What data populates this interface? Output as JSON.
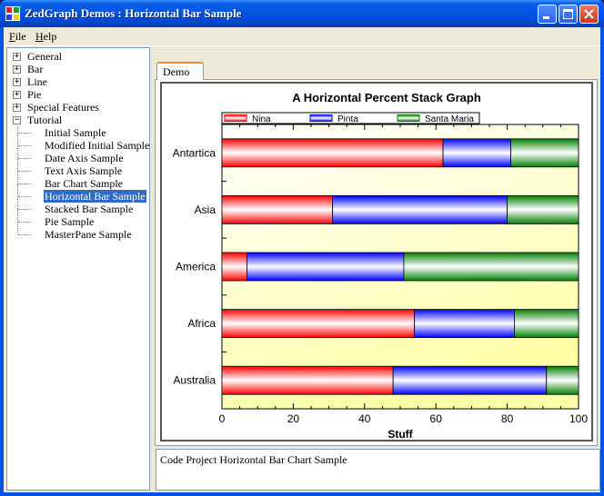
{
  "window": {
    "title": "ZedGraph Demos : Horizontal Bar Sample"
  },
  "menu": [
    {
      "key": "F",
      "rest": "ile"
    },
    {
      "key": "H",
      "rest": "elp"
    }
  ],
  "tree": {
    "nodes": [
      {
        "label": "General",
        "expander": "+"
      },
      {
        "label": "Bar",
        "expander": "+"
      },
      {
        "label": "Line",
        "expander": "+"
      },
      {
        "label": "Pie",
        "expander": "+"
      },
      {
        "label": "Special Features",
        "expander": "+"
      },
      {
        "label": "Tutorial",
        "expander": "−"
      }
    ],
    "children": [
      {
        "label": "Initial Sample"
      },
      {
        "label": "Modified Initial Sample"
      },
      {
        "label": "Date Axis Sample"
      },
      {
        "label": "Text Axis Sample"
      },
      {
        "label": "Bar Chart Sample"
      },
      {
        "label": "Horizontal Bar Sample",
        "selected": true
      },
      {
        "label": "Stacked Bar Sample"
      },
      {
        "label": "Pie Sample"
      },
      {
        "label": "MasterPane Sample"
      }
    ]
  },
  "tabs": [
    {
      "label": "Demo"
    }
  ],
  "description": "Code Project Horizontal Bar Chart Sample",
  "chart_data": {
    "type": "bar",
    "orientation": "horizontal",
    "stacking": "percent",
    "title": "A Horizontal Percent Stack Graph",
    "xlabel": "Stuff",
    "xlim": [
      0,
      100
    ],
    "xticks": [
      "0",
      "20",
      "40",
      "60",
      "80",
      "100"
    ],
    "categories": [
      "Antartica",
      "Asia",
      "America",
      "Africa",
      "Australia"
    ],
    "series": [
      {
        "name": "Nina",
        "color": "#ff0000",
        "values": [
          62,
          31,
          7,
          54,
          48
        ]
      },
      {
        "name": "Pinta",
        "color": "#0000ff",
        "values": [
          19,
          49,
          44,
          28,
          43
        ]
      },
      {
        "name": "Santa Maria",
        "color": "#008000",
        "values": [
          19,
          20,
          49,
          18,
          9
        ]
      }
    ],
    "legend": "top",
    "background": "white-to-yellow gradient"
  }
}
